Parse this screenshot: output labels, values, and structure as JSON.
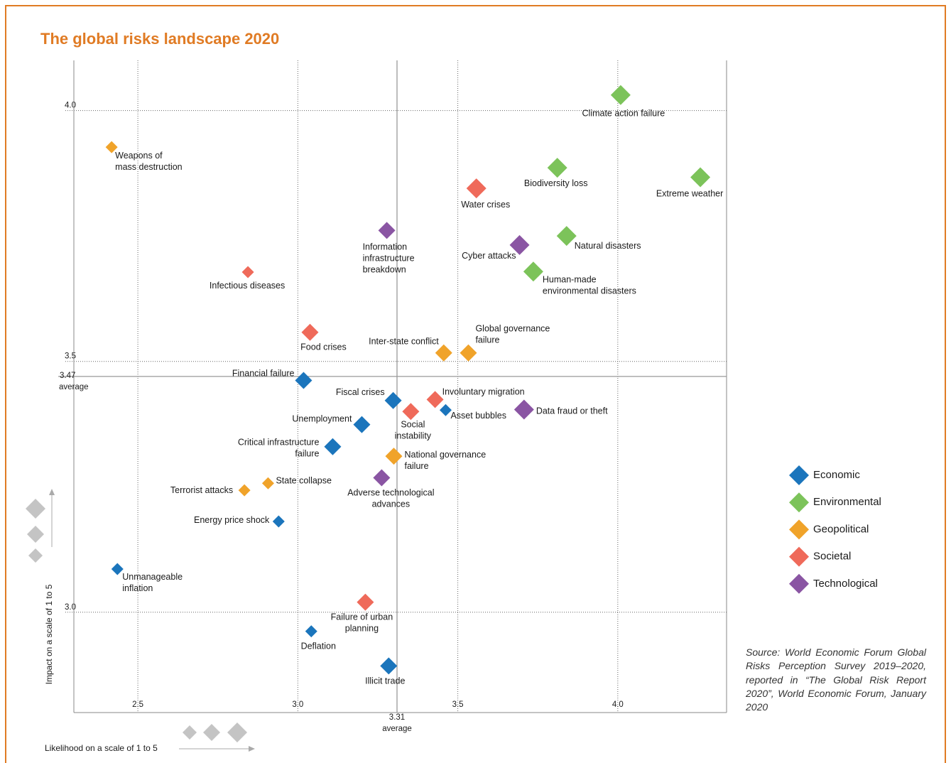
{
  "chart_data": {
    "type": "scatter",
    "title": "The global risks landscape 2020",
    "x_label": "Likelihood on a scale of 1 to 5",
    "y_label": "Impact on a scale of 1 to 5",
    "xlim": [
      2.3,
      4.34
    ],
    "ylim": [
      2.8,
      4.1
    ],
    "xticks": [
      2.5,
      {
        "value": 3,
        "label": "3.0"
      },
      3.5,
      {
        "value": 4,
        "label": "4.0"
      }
    ],
    "yticks": [
      {
        "value": 3,
        "label": "3.0"
      },
      3.5,
      {
        "value": 4,
        "label": "4.0"
      }
    ],
    "x_average": 3.31,
    "y_average": 3.47,
    "average_label": "average",
    "grid": true,
    "legend": "right",
    "source": "Source: World Economic Forum Global Risks Perception Survey 2019–2020, reported in “The Global Risk Report 2020”, World Economic Forum, January 2020",
    "series": [
      {
        "name": "Economic",
        "color": "#1b75bc",
        "labels": [
          "Financial failure",
          "Fiscal crises",
          "Asset bubbles",
          "Unemployment",
          "Critical infrastructure\nfailure",
          "Energy price shock",
          "Unmanageable\ninflation",
          "Deflation",
          "Illicit trade"
        ],
        "x": [
          3.018,
          3.298,
          3.462,
          3.2,
          3.109,
          2.94,
          2.436,
          3.042,
          3.284
        ],
        "values": [
          3.462,
          3.422,
          3.403,
          3.374,
          3.33,
          3.181,
          3.086,
          2.962,
          2.893
        ],
        "sizes": [
          2,
          2,
          1,
          2,
          2,
          1,
          1,
          1,
          2
        ]
      },
      {
        "name": "Environmental",
        "color": "#7cc35a",
        "labels": [
          "Climate action failure",
          "Extreme weather",
          "Biodiversity loss",
          "Natural disasters",
          "Human-made\nenvironmental disasters"
        ],
        "x": [
          4.009,
          4.258,
          3.811,
          3.84,
          3.736
        ],
        "values": [
          4.031,
          3.867,
          3.886,
          3.75,
          3.679
        ],
        "sizes": [
          3,
          3,
          3,
          3,
          3
        ]
      },
      {
        "name": "Geopolitical",
        "color": "#f0a32a",
        "labels": [
          "Weapons of\nmass destruction",
          "Inter-state conflict",
          "Global governance\nfailure",
          "National governance\nfailure",
          "State collapse",
          "Terrorist attacks"
        ],
        "x": [
          2.418,
          3.456,
          3.533,
          3.3,
          2.907,
          2.833
        ],
        "values": [
          3.927,
          3.517,
          3.517,
          3.311,
          3.257,
          3.243
        ],
        "sizes": [
          1,
          2,
          2,
          2,
          1,
          1
        ]
      },
      {
        "name": "Societal",
        "color": "#ef6a5a",
        "labels": [
          "Water crises",
          "Infectious diseases",
          "Food crises",
          "Involuntary migration",
          "Social\ninstability",
          "Failure of urban\nplanning"
        ],
        "x": [
          3.558,
          2.844,
          3.038,
          3.429,
          3.353,
          3.211
        ],
        "values": [
          3.845,
          3.678,
          3.558,
          3.424,
          3.4,
          3.02
        ],
        "sizes": [
          3,
          1,
          2,
          2,
          2,
          2
        ]
      },
      {
        "name": "Technological",
        "color": "#8a55a3",
        "labels": [
          "Cyber attacks",
          "Information\ninfrastructure\nbreakdown",
          "Data fraud or theft",
          "Adverse technological\nadvances"
        ],
        "x": [
          3.693,
          3.278,
          3.707,
          3.262
        ],
        "values": [
          3.732,
          3.761,
          3.404,
          3.268
        ],
        "sizes": [
          3,
          2,
          3,
          2
        ]
      }
    ]
  }
}
